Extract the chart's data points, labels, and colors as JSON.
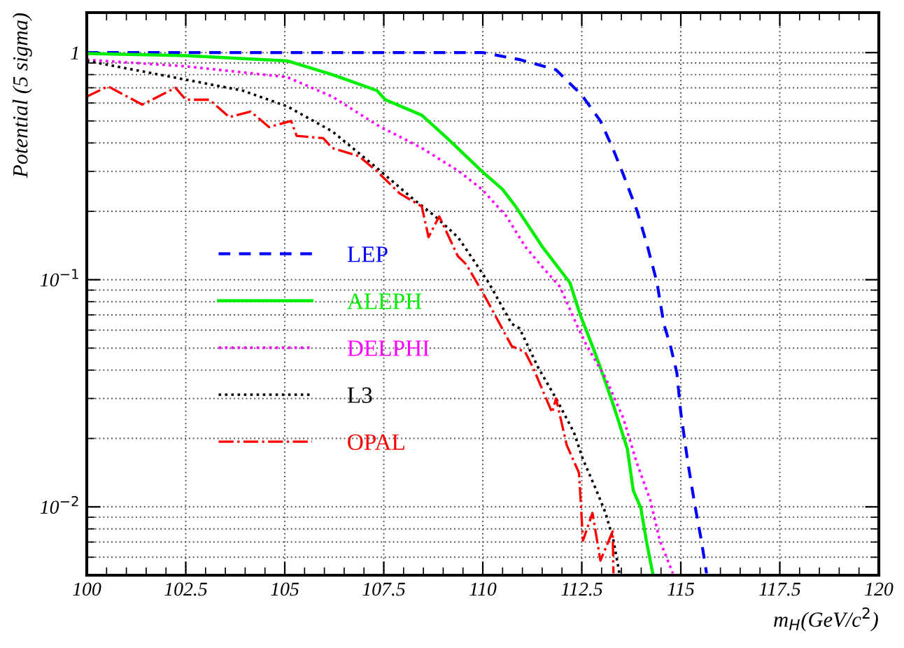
{
  "chart_data": {
    "type": "line",
    "xlabel": "m$_{H}$(GeV/c$^{2}$)",
    "ylabel": "Potential (5 sigma)",
    "xlim": [
      100,
      120
    ],
    "xticks": [
      100,
      102.5,
      105,
      107.5,
      110,
      112.5,
      115,
      117.5,
      120
    ],
    "ylim": [
      0.005,
      1.5
    ],
    "yticks": [
      {
        "value": 0.01,
        "label": "10$^{−2}$"
      },
      {
        "value": 0.1,
        "label": "10$^{−1}$"
      },
      1
    ],
    "log": "y",
    "grid": true,
    "legend": "left",
    "series": [
      {
        "name": "LEP",
        "color": "#0000ff",
        "line_style": "dashed",
        "x": [
          100,
          105,
          110,
          110.95,
          111.85,
          112.5,
          112.97,
          113.28,
          113.55,
          113.9,
          114.16,
          114.4,
          114.57,
          114.74,
          114.9,
          115.0,
          115.18,
          115.35,
          115.52,
          115.65
        ],
        "values": [
          1.0,
          1.0,
          1.0,
          0.93,
          0.84,
          0.65,
          0.5,
          0.38,
          0.29,
          0.2,
          0.14,
          0.097,
          0.064,
          0.051,
          0.039,
          0.026,
          0.0156,
          0.0103,
          0.0071,
          0.0051
        ]
      },
      {
        "name": "ALEPH",
        "color": "#00ee00",
        "line_style": "solid",
        "x": [
          100,
          102.5,
          105.06,
          106.2,
          107.33,
          107.54,
          108.46,
          109.1,
          109.98,
          110.5,
          110.83,
          111.5,
          112.2,
          112.46,
          112.77,
          112.97,
          113.3,
          113.65,
          113.8,
          113.99,
          114.13,
          114.3
        ],
        "values": [
          0.99,
          0.97,
          0.92,
          0.8,
          0.68,
          0.62,
          0.53,
          0.42,
          0.3,
          0.25,
          0.21,
          0.14,
          0.097,
          0.07,
          0.051,
          0.041,
          0.028,
          0.018,
          0.0118,
          0.0099,
          0.0071,
          0.005
        ]
      },
      {
        "name": "DELPHI",
        "color": "#ff00ff",
        "line_style": "dotted",
        "x": [
          100,
          102.5,
          105.06,
          106.2,
          107.33,
          108.46,
          109.4,
          109.98,
          110.6,
          111.07,
          111.5,
          111.95,
          112.36,
          112.63,
          113.1,
          113.55,
          113.89,
          114.23,
          114.47,
          114.8
        ],
        "values": [
          0.93,
          0.87,
          0.78,
          0.64,
          0.48,
          0.38,
          0.3,
          0.25,
          0.19,
          0.14,
          0.114,
          0.093,
          0.064,
          0.051,
          0.037,
          0.0245,
          0.0156,
          0.0107,
          0.0071,
          0.0051
        ]
      },
      {
        "name": "L3",
        "color": "#000000",
        "line_style": "dotted",
        "x": [
          100,
          102.5,
          103.94,
          105.06,
          106.2,
          107.33,
          108.2,
          108.8,
          109.37,
          109.7,
          110.15,
          110.73,
          110.93,
          111.4,
          111.85,
          112.3,
          112.53,
          112.87,
          113.1,
          113.3,
          113.45
        ],
        "values": [
          0.92,
          0.76,
          0.68,
          0.58,
          0.45,
          0.31,
          0.23,
          0.19,
          0.154,
          0.127,
          0.097,
          0.064,
          0.061,
          0.041,
          0.03,
          0.0213,
          0.0162,
          0.0118,
          0.0094,
          0.0071,
          0.0051
        ]
      },
      {
        "name": "OPAL",
        "color": "#ff0000",
        "line_style": "dashdot",
        "x": [
          100,
          100.54,
          101.4,
          102.24,
          102.5,
          103.1,
          103.6,
          104.14,
          104.6,
          105.16,
          105.3,
          105.97,
          106.2,
          106.87,
          107.33,
          107.9,
          108.46,
          108.63,
          108.9,
          109.37,
          109.58,
          109.98,
          110.25,
          110.73,
          111.07,
          111.27,
          111.75,
          111.85,
          112.12,
          112.43,
          112.53,
          112.77,
          112.97,
          113.28,
          113.3
        ],
        "values": [
          0.64,
          0.71,
          0.59,
          0.7,
          0.62,
          0.62,
          0.52,
          0.55,
          0.47,
          0.5,
          0.43,
          0.42,
          0.38,
          0.35,
          0.3,
          0.24,
          0.21,
          0.154,
          0.19,
          0.127,
          0.117,
          0.089,
          0.073,
          0.051,
          0.048,
          0.041,
          0.026,
          0.03,
          0.0187,
          0.0141,
          0.0071,
          0.0094,
          0.0058,
          0.0078,
          0.0051
        ]
      }
    ]
  }
}
